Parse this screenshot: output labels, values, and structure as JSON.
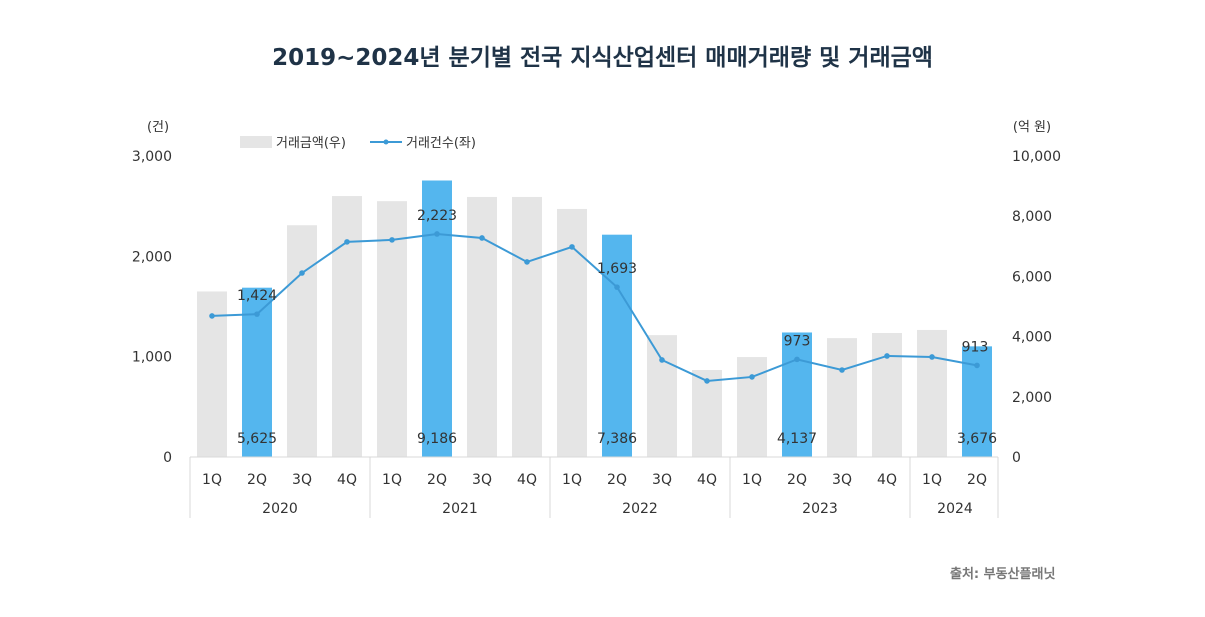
{
  "chart_data": {
    "type": "bar+line",
    "title": "2019~2024년 분기별 전국 지식산업센터 매매거래량 및 거래금액",
    "left_axis": {
      "unit": "(건)",
      "range": [
        0,
        3000
      ],
      "ticks": [
        "0",
        "1,000",
        "2,000",
        "3,000"
      ]
    },
    "right_axis": {
      "unit": "(억 원)",
      "range": [
        0,
        10000
      ],
      "ticks": [
        "0",
        "2,000",
        "4,000",
        "6,000",
        "8,000",
        "10,000"
      ]
    },
    "legend": {
      "placement": "top-left",
      "bar_label": "거래금액(우)",
      "line_label": "거래건수(좌)"
    },
    "categories": [
      "1Q",
      "2Q",
      "3Q",
      "4Q",
      "1Q",
      "2Q",
      "3Q",
      "4Q",
      "1Q",
      "2Q",
      "3Q",
      "4Q",
      "1Q",
      "2Q",
      "3Q",
      "4Q",
      "1Q",
      "2Q"
    ],
    "years": [
      {
        "label": "2020",
        "count": 4
      },
      {
        "label": "2021",
        "count": 4
      },
      {
        "label": "2022",
        "count": 4
      },
      {
        "label": "2023",
        "count": 4
      },
      {
        "label": "2024",
        "count": 2
      }
    ],
    "series": [
      {
        "name": "거래금액(우)",
        "type": "bar",
        "axis": "right",
        "values": [
          5500,
          5625,
          7700,
          8670,
          8500,
          9186,
          8640,
          8640,
          8240,
          7386,
          4050,
          2890,
          3320,
          4137,
          3950,
          4120,
          4220,
          3676
        ],
        "labels": [
          null,
          "5,625",
          null,
          null,
          null,
          "9,186",
          null,
          null,
          null,
          "7,386",
          null,
          null,
          null,
          "4,137",
          null,
          null,
          null,
          "3,676"
        ]
      },
      {
        "name": "거래건수(좌)",
        "type": "line",
        "axis": "left",
        "values": [
          1406,
          1424,
          1834,
          2144,
          2164,
          2223,
          2183,
          1944,
          2094,
          1693,
          967,
          758,
          798,
          973,
          867,
          1007,
          997,
          913
        ],
        "labels": [
          null,
          "1,424",
          null,
          null,
          null,
          "2,223",
          null,
          null,
          null,
          "1,693",
          null,
          null,
          null,
          "973",
          null,
          null,
          null,
          "913"
        ]
      }
    ],
    "highlighted_indices": [
      1,
      5,
      9,
      13,
      17
    ],
    "colors": {
      "bar": "#e5e5e5",
      "bar_highlight": "#54b6ee",
      "line": "#3c9ad6",
      "text": "#333333",
      "title": "#1f3347"
    }
  },
  "source": "출처: 부동산플래닛"
}
